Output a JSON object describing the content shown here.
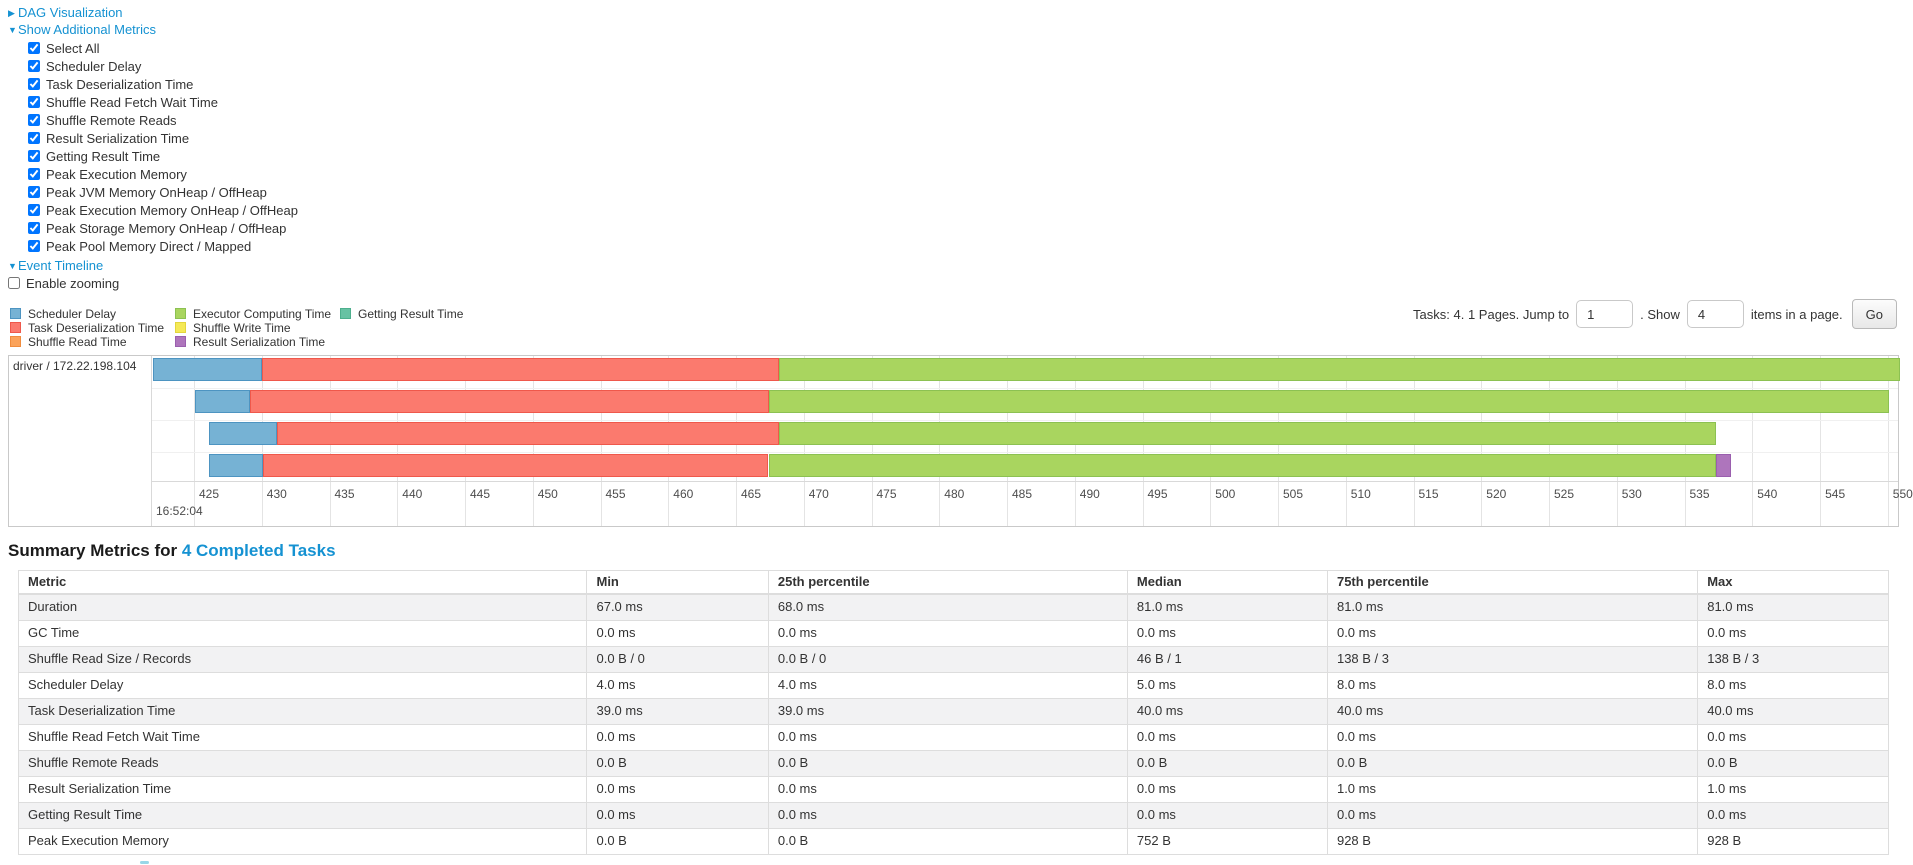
{
  "toggles": {
    "dag": {
      "label": "DAG Visualization",
      "state": "collapsed"
    },
    "additional_metrics": {
      "label": "Show Additional Metrics",
      "state": "expanded"
    },
    "event_timeline": {
      "label": "Event Timeline",
      "state": "expanded"
    },
    "enable_zooming": {
      "label": "Enable zooming",
      "checked": false
    },
    "collapsed_arrow": "▶",
    "expanded_arrow": "▼"
  },
  "metric_checkboxes": [
    {
      "label": "Select All",
      "checked": true
    },
    {
      "label": "Scheduler Delay",
      "checked": true
    },
    {
      "label": "Task Deserialization Time",
      "checked": true
    },
    {
      "label": "Shuffle Read Fetch Wait Time",
      "checked": true
    },
    {
      "label": "Shuffle Remote Reads",
      "checked": true
    },
    {
      "label": "Result Serialization Time",
      "checked": true
    },
    {
      "label": "Getting Result Time",
      "checked": true
    },
    {
      "label": "Peak Execution Memory",
      "checked": true
    },
    {
      "label": "Peak JVM Memory OnHeap / OffHeap",
      "checked": true
    },
    {
      "label": "Peak Execution Memory OnHeap / OffHeap",
      "checked": true
    },
    {
      "label": "Peak Storage Memory OnHeap / OffHeap",
      "checked": true
    },
    {
      "label": "Peak Pool Memory Direct / Mapped",
      "checked": true
    }
  ],
  "legend": {
    "columns": [
      [
        {
          "label": "Scheduler Delay",
          "color_key": "scheduler_delay"
        },
        {
          "label": "Task Deserialization Time",
          "color_key": "task_deserialization"
        },
        {
          "label": "Shuffle Read Time",
          "color_key": "shuffle_read"
        }
      ],
      [
        {
          "label": "Executor Computing Time",
          "color_key": "executor_computing"
        },
        {
          "label": "Shuffle Write Time",
          "color_key": "shuffle_write"
        },
        {
          "label": "Result Serialization Time",
          "color_key": "result_serialization"
        }
      ],
      [
        {
          "label": "Getting Result Time",
          "color_key": "getting_result"
        }
      ]
    ]
  },
  "pagination": {
    "prefix": "Tasks: 4. 1 Pages. Jump to",
    "jump_value": "1",
    "mid": ". Show",
    "show_value": "4",
    "suffix": "items in a page.",
    "go_label": "Go"
  },
  "chart_data": {
    "type": "timeline-gantt",
    "row_label": "driver / 172.22.198.104",
    "axis_major_label": "16:52:04",
    "domain": [
      421.9,
      550.9
    ],
    "ticks": [
      425,
      430,
      435,
      440,
      445,
      450,
      455,
      460,
      465,
      470,
      475,
      480,
      485,
      490,
      495,
      500,
      505,
      510,
      515,
      520,
      525,
      530,
      535,
      540,
      545,
      550
    ],
    "colors": {
      "scheduler_delay": {
        "fill": "#76b2d4",
        "border": "#4d94c1"
      },
      "task_deserialization": {
        "fill": "#fb7a6e",
        "border": "#ef584b"
      },
      "shuffle_read": {
        "fill": "#fba35b",
        "border": "#f08c3e"
      },
      "executor_computing": {
        "fill": "#a9d55f",
        "border": "#8cc152"
      },
      "shuffle_write": {
        "fill": "#f5e956",
        "border": "#e3d63d"
      },
      "getting_result": {
        "fill": "#67c2a3",
        "border": "#4daf8d"
      },
      "result_serialization": {
        "fill": "#ae75bc",
        "border": "#9a5fae"
      }
    },
    "tasks": [
      {
        "segments": [
          {
            "name": "scheduler_delay",
            "start": 422.0,
            "end": 430.0
          },
          {
            "name": "task_deserialization",
            "start": 430.0,
            "end": 468.2
          },
          {
            "name": "executor_computing",
            "start": 468.2,
            "end": 550.9
          }
        ]
      },
      {
        "segments": [
          {
            "name": "scheduler_delay",
            "start": 425.1,
            "end": 429.1
          },
          {
            "name": "task_deserialization",
            "start": 429.1,
            "end": 467.4
          },
          {
            "name": "executor_computing",
            "start": 467.4,
            "end": 550.1
          }
        ]
      },
      {
        "segments": [
          {
            "name": "scheduler_delay",
            "start": 426.1,
            "end": 431.1
          },
          {
            "name": "task_deserialization",
            "start": 431.1,
            "end": 468.2
          },
          {
            "name": "executor_computing",
            "start": 468.2,
            "end": 537.3
          }
        ]
      },
      {
        "segments": [
          {
            "name": "scheduler_delay",
            "start": 426.1,
            "end": 430.1
          },
          {
            "name": "task_deserialization",
            "start": 430.1,
            "end": 467.4
          },
          {
            "name": "executor_computing",
            "start": 467.4,
            "end": 537.3
          },
          {
            "name": "result_serialization",
            "start": 537.3,
            "end": 538.4
          }
        ]
      }
    ]
  },
  "summary": {
    "title_prefix": "Summary Metrics for ",
    "title_link": "4 Completed Tasks",
    "columns": [
      "Metric",
      "Min",
      "25th percentile",
      "Median",
      "75th percentile",
      "Max"
    ],
    "col_widths": [
      "30.4%",
      "9.7%",
      "19.2%",
      "10.7%",
      "19.8%",
      "10.2%"
    ],
    "rows": [
      {
        "metric": "Duration",
        "values": [
          "67.0 ms",
          "68.0 ms",
          "81.0 ms",
          "81.0 ms",
          "81.0 ms"
        ]
      },
      {
        "metric": "GC Time",
        "values": [
          "0.0 ms",
          "0.0 ms",
          "0.0 ms",
          "0.0 ms",
          "0.0 ms"
        ]
      },
      {
        "metric": "Shuffle Read Size / Records",
        "values": [
          "0.0 B / 0",
          "0.0 B / 0",
          "46 B / 1",
          "138 B / 3",
          "138 B / 3"
        ]
      },
      {
        "metric": "Scheduler Delay",
        "values": [
          "4.0 ms",
          "4.0 ms",
          "5.0 ms",
          "8.0 ms",
          "8.0 ms"
        ]
      },
      {
        "metric": "Task Deserialization Time",
        "values": [
          "39.0 ms",
          "39.0 ms",
          "40.0 ms",
          "40.0 ms",
          "40.0 ms"
        ]
      },
      {
        "metric": "Shuffle Read Fetch Wait Time",
        "values": [
          "0.0 ms",
          "0.0 ms",
          "0.0 ms",
          "0.0 ms",
          "0.0 ms"
        ]
      },
      {
        "metric": "Shuffle Remote Reads",
        "values": [
          "0.0 B",
          "0.0 B",
          "0.0 B",
          "0.0 B",
          "0.0 B"
        ]
      },
      {
        "metric": "Result Serialization Time",
        "values": [
          "0.0 ms",
          "0.0 ms",
          "0.0 ms",
          "1.0 ms",
          "1.0 ms"
        ]
      },
      {
        "metric": "Getting Result Time",
        "values": [
          "0.0 ms",
          "0.0 ms",
          "0.0 ms",
          "0.0 ms",
          "0.0 ms"
        ]
      },
      {
        "metric": "Peak Execution Memory",
        "values": [
          "0.0 B",
          "0.0 B",
          "752 B",
          "928 B",
          "928 B"
        ]
      }
    ]
  }
}
